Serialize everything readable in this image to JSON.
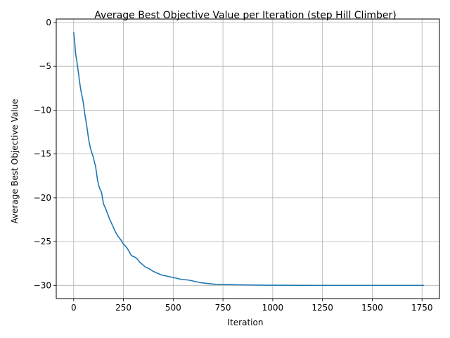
{
  "chart_data": {
    "type": "line",
    "title": "Average Best Objective Value per Iteration (step Hill Climber)",
    "xlabel": "Iteration",
    "ylabel": "Average Best Objective Value",
    "xlim": [
      -87.5,
      1837.5
    ],
    "ylim": [
      -31.5,
      0.4
    ],
    "xticks": [
      0,
      250,
      500,
      750,
      1000,
      1250,
      1500,
      1750
    ],
    "yticks": [
      0,
      -5,
      -10,
      -15,
      -20,
      -25,
      -30
    ],
    "grid": true,
    "line_color": "#1f77b4",
    "series": [
      {
        "x": [
          0,
          5,
          10,
          15,
          20,
          25,
          30,
          35,
          40,
          45,
          50,
          55,
          60,
          65,
          70,
          75,
          80,
          85,
          90,
          95,
          100,
          105,
          110,
          115,
          120,
          125,
          130,
          140,
          150,
          160,
          170,
          180,
          190,
          200,
          210,
          220,
          230,
          240,
          250,
          260,
          270,
          280,
          290,
          300,
          310,
          320,
          330,
          340,
          350,
          360,
          380,
          400,
          420,
          440,
          460,
          480,
          500,
          520,
          540,
          560,
          580,
          600,
          620,
          640,
          660,
          680,
          700,
          720,
          750,
          800,
          850,
          900,
          950,
          1000,
          1100,
          1200,
          1300,
          1400,
          1500,
          1600,
          1700,
          1760
        ],
        "y": [
          -1.1,
          -2.2,
          -3.6,
          -4.3,
          -5.1,
          -5.9,
          -6.8,
          -7.6,
          -8.2,
          -8.7,
          -9.4,
          -10.3,
          -11.0,
          -11.7,
          -12.5,
          -13.3,
          -13.9,
          -14.4,
          -14.8,
          -15.1,
          -15.5,
          -16.0,
          -16.4,
          -17.2,
          -18.0,
          -18.5,
          -18.9,
          -19.4,
          -20.7,
          -21.2,
          -21.8,
          -22.4,
          -22.9,
          -23.4,
          -23.9,
          -24.3,
          -24.6,
          -24.9,
          -25.3,
          -25.5,
          -25.8,
          -26.2,
          -26.6,
          -26.7,
          -26.8,
          -27.0,
          -27.3,
          -27.5,
          -27.7,
          -27.9,
          -28.1,
          -28.4,
          -28.6,
          -28.8,
          -28.9,
          -29.0,
          -29.1,
          -29.2,
          -29.3,
          -29.35,
          -29.4,
          -29.5,
          -29.6,
          -29.7,
          -29.75,
          -29.8,
          -29.85,
          -29.88,
          -29.9,
          -29.92,
          -29.94,
          -29.96,
          -29.97,
          -29.98,
          -29.99,
          -30.0,
          -30.0,
          -30.0,
          -30.0,
          -30.0,
          -30.0,
          -30.0
        ]
      }
    ]
  }
}
